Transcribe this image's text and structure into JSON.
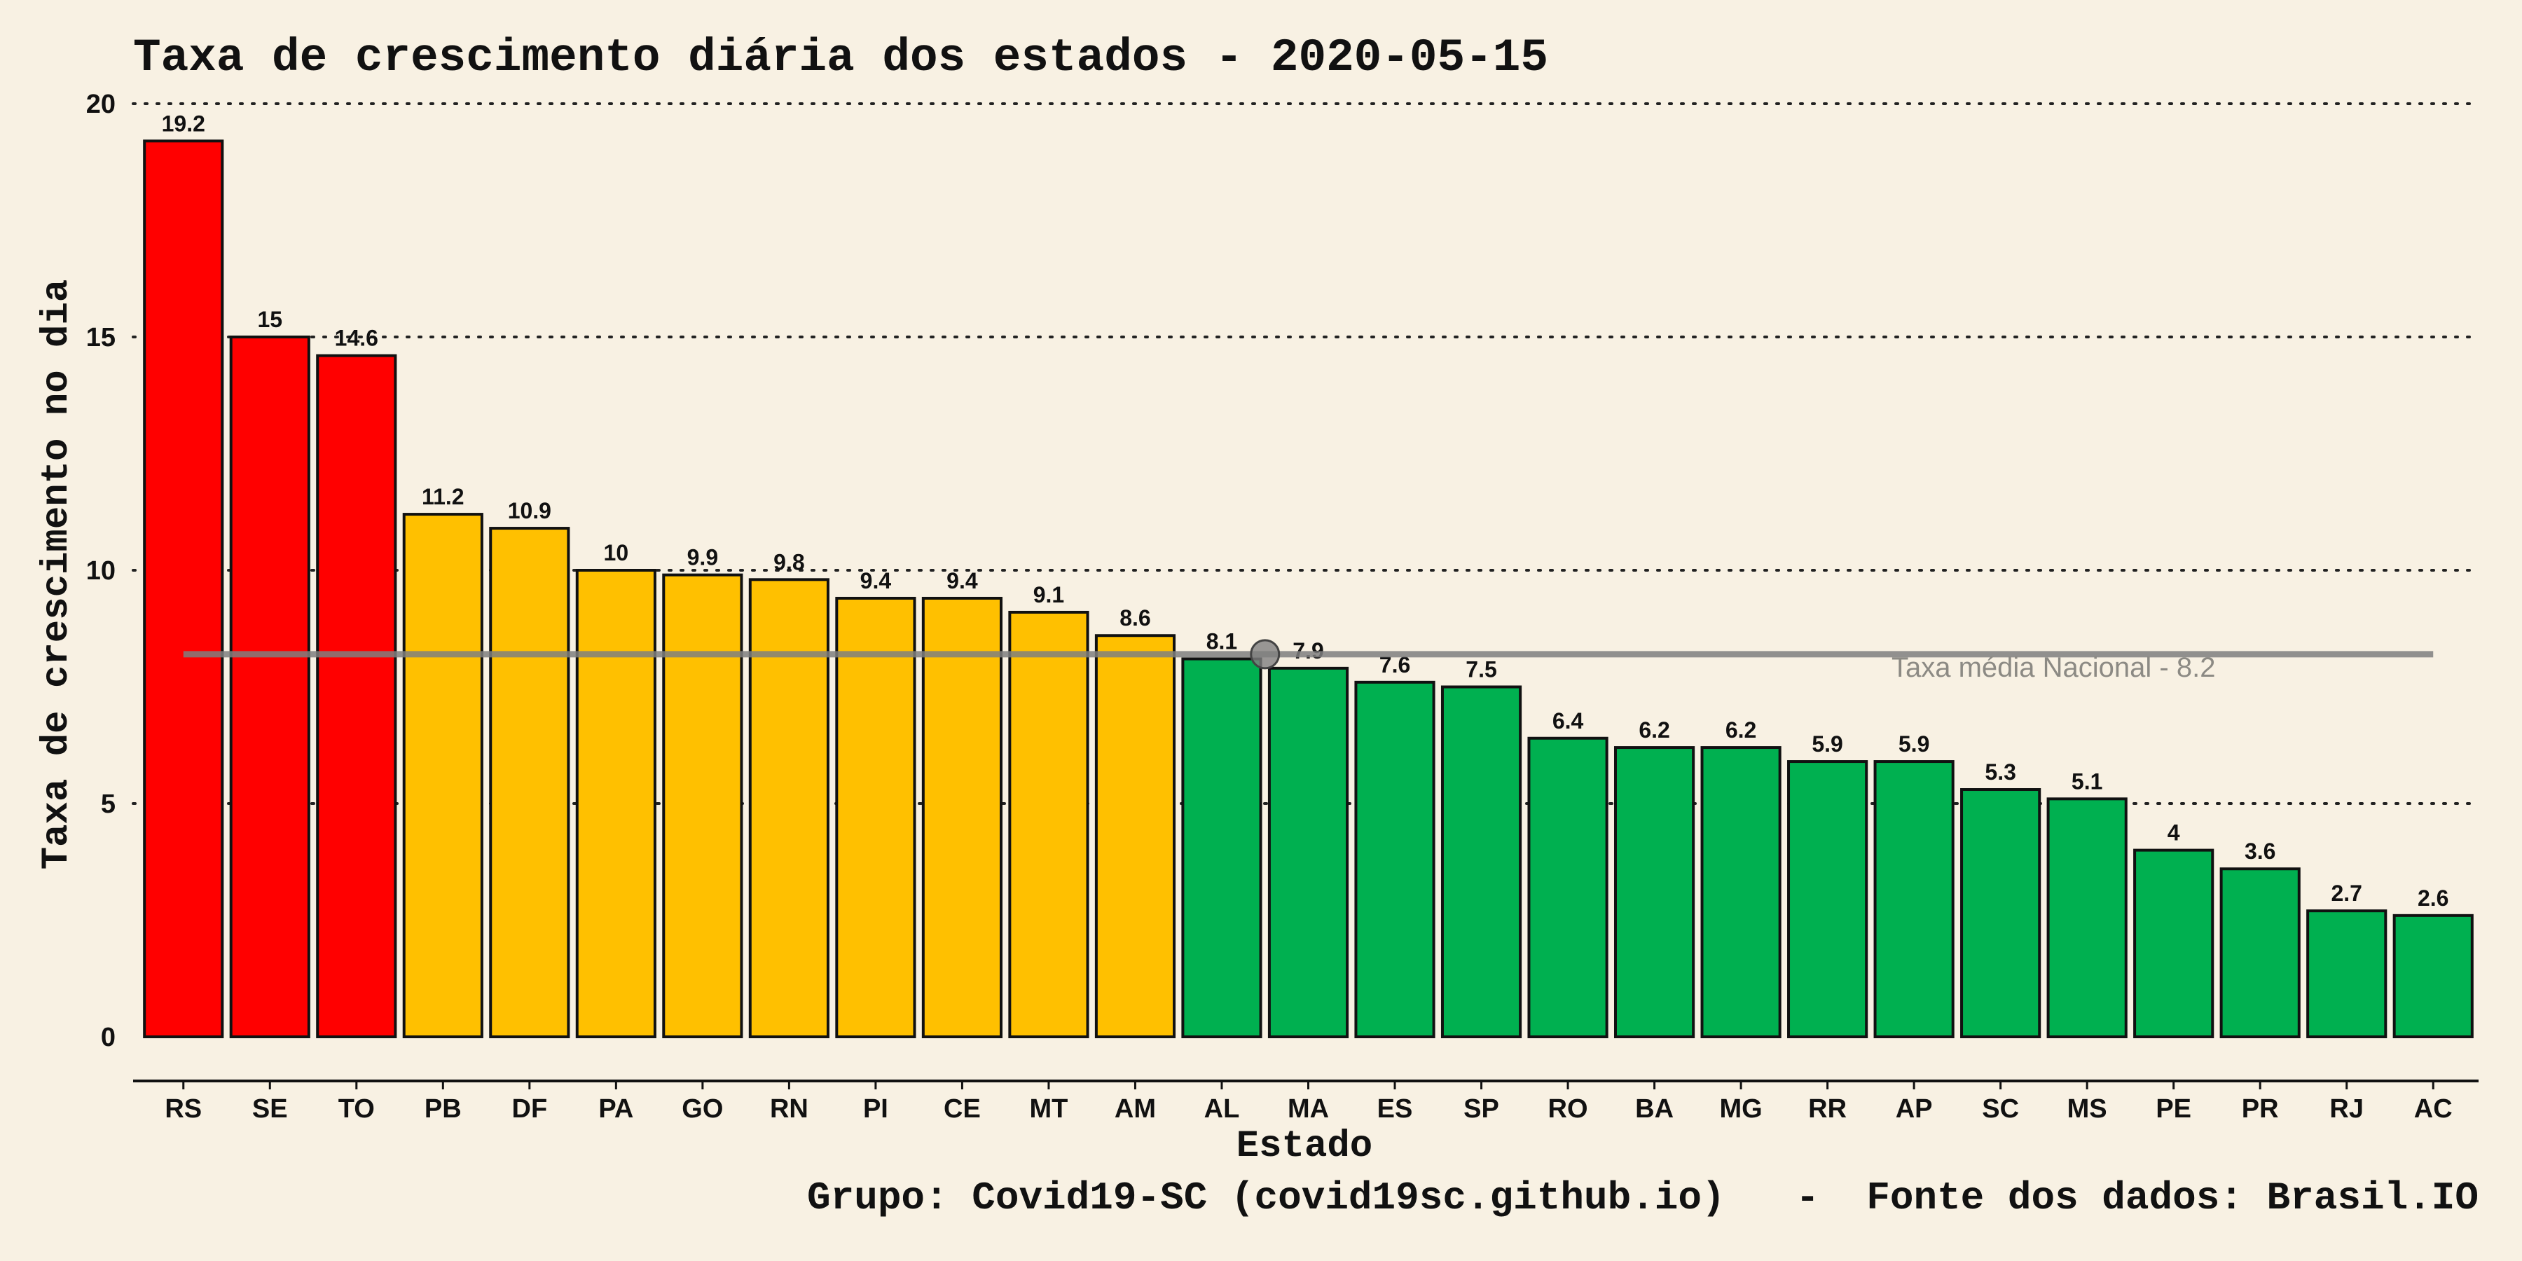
{
  "chart_data": {
    "type": "bar",
    "title": "Taxa de crescimento diária dos estados - 2020-05-15",
    "xlabel": "Estado",
    "ylabel": "Taxa de crescimento no dia",
    "caption": "Grupo: Covid19-SC (covid19sc.github.io)   -  Fonte dos dados: Brasil.IO",
    "ylim": [
      0,
      20
    ],
    "yticks": [
      0,
      5,
      10,
      15,
      20
    ],
    "grid": "horizontal-dotted",
    "categories": [
      "RS",
      "SE",
      "TO",
      "PB",
      "DF",
      "PA",
      "GO",
      "RN",
      "PI",
      "CE",
      "MT",
      "AM",
      "AL",
      "MA",
      "ES",
      "SP",
      "RO",
      "BA",
      "MG",
      "RR",
      "AP",
      "SC",
      "MS",
      "PE",
      "PR",
      "RJ",
      "AC"
    ],
    "values": [
      19.2,
      15,
      14.6,
      11.2,
      10.9,
      10,
      9.9,
      9.8,
      9.4,
      9.4,
      9.1,
      8.6,
      8.1,
      7.9,
      7.6,
      7.5,
      6.4,
      6.2,
      6.2,
      5.9,
      5.9,
      5.3,
      5.1,
      4,
      3.6,
      2.7,
      2.6
    ],
    "bar_colors": [
      "#ff0000",
      "#ff0000",
      "#ff0000",
      "#ffc000",
      "#ffc000",
      "#ffc000",
      "#ffc000",
      "#ffc000",
      "#ffc000",
      "#ffc000",
      "#ffc000",
      "#ffc000",
      "#00b050",
      "#00b050",
      "#00b050",
      "#00b050",
      "#00b050",
      "#00b050",
      "#00b050",
      "#00b050",
      "#00b050",
      "#00b050",
      "#00b050",
      "#00b050",
      "#00b050",
      "#00b050",
      "#00b050"
    ],
    "reference_line": {
      "value": 8.2,
      "label": "Taxa média Nacional -  8.2",
      "color": "#7f7f7f"
    }
  }
}
